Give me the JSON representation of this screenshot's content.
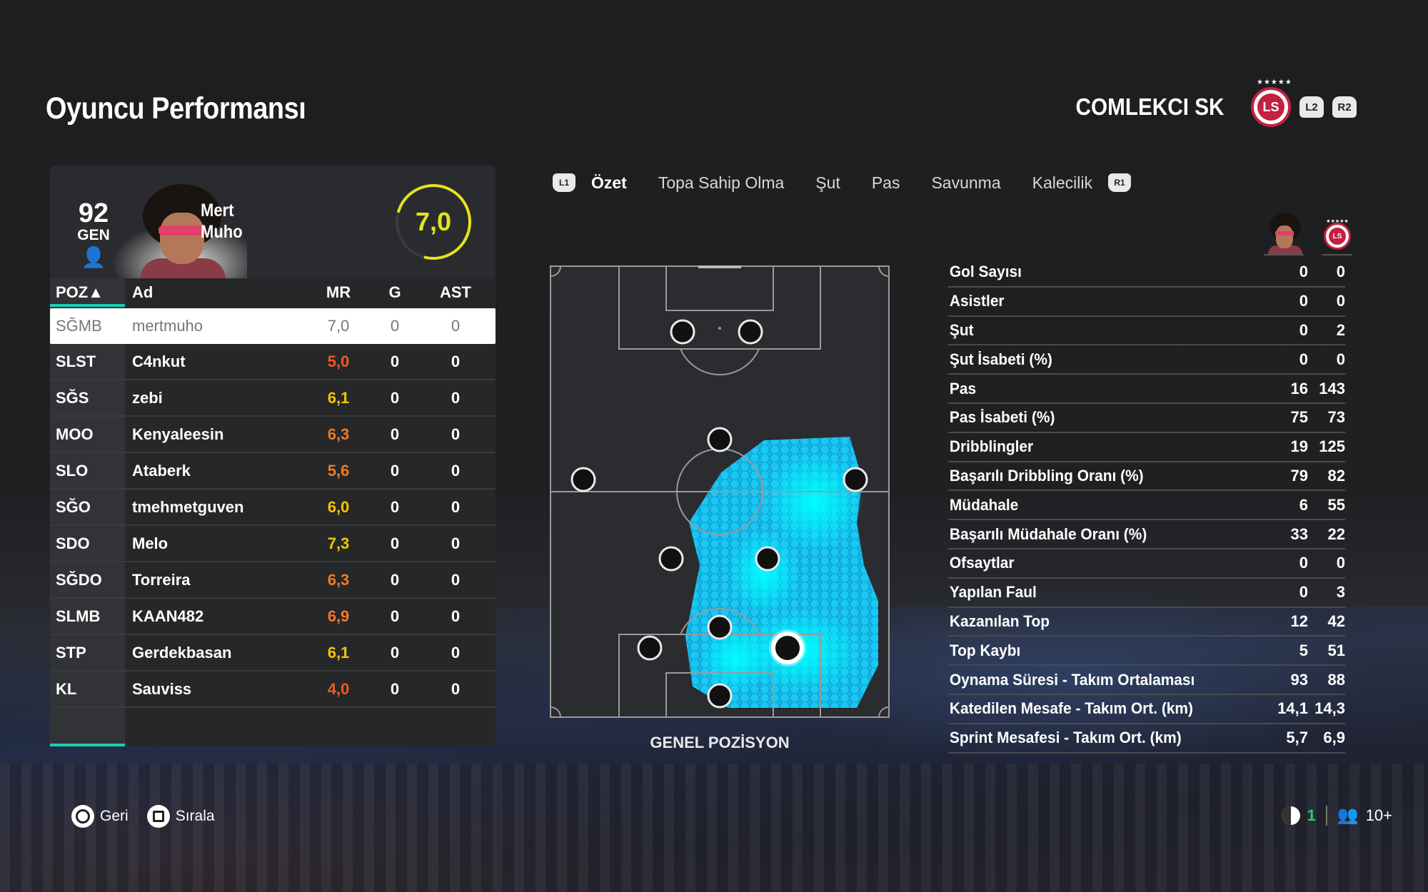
{
  "header": {
    "title": "Oyuncu Performansı",
    "club_name": "COMLEKCI SK",
    "club_crest_text": "LS",
    "l2_label": "L2",
    "r2_label": "R2"
  },
  "player": {
    "ovr": "92",
    "ovr_label": "GEN",
    "first_name": "Mert",
    "last_name": "Muho",
    "rating": "7,0"
  },
  "table": {
    "headers": {
      "pos": "POZ▲",
      "name": "Ad",
      "mr": "MR",
      "g": "G",
      "ast": "AST"
    },
    "rows": [
      {
        "pos": "SĞMB",
        "name": "mertmuho",
        "mr": "7,0",
        "g": "0",
        "ast": "0"
      },
      {
        "pos": "SLST",
        "name": "C4nkut",
        "mr": "5,0",
        "g": "0",
        "ast": "0"
      },
      {
        "pos": "SĞS",
        "name": "zebi",
        "mr": "6,1",
        "g": "0",
        "ast": "0"
      },
      {
        "pos": "MOO",
        "name": "Kenyaleesin",
        "mr": "6,3",
        "g": "0",
        "ast": "0"
      },
      {
        "pos": "SLO",
        "name": "Ataberk",
        "mr": "5,6",
        "g": "0",
        "ast": "0"
      },
      {
        "pos": "SĞO",
        "name": "tmehmetguven",
        "mr": "6,0",
        "g": "0",
        "ast": "0"
      },
      {
        "pos": "SDO",
        "name": "Melo",
        "mr": "7,3",
        "g": "0",
        "ast": "0"
      },
      {
        "pos": "SĞDO",
        "name": "Torreira",
        "mr": "6,3",
        "g": "0",
        "ast": "0"
      },
      {
        "pos": "SLMB",
        "name": "KAAN482",
        "mr": "6,9",
        "g": "0",
        "ast": "0"
      },
      {
        "pos": "STP",
        "name": "Gerdekbasan",
        "mr": "6,1",
        "g": "0",
        "ast": "0"
      },
      {
        "pos": "KL",
        "name": "Sauviss",
        "mr": "4,0",
        "g": "0",
        "ast": "0"
      }
    ]
  },
  "tabs": {
    "l1_label": "L1",
    "r1_label": "R1",
    "items": [
      "Özet",
      "Topa Sahip Olma",
      "Şut",
      "Pas",
      "Savunma",
      "Kalecilik"
    ],
    "active": "Özet"
  },
  "pitch": {
    "caption": "GENEL POZİSYON"
  },
  "stats": {
    "rows": [
      {
        "label": "Gol Sayısı",
        "player": "0",
        "team": "0"
      },
      {
        "label": "Asistler",
        "player": "0",
        "team": "0"
      },
      {
        "label": "Şut",
        "player": "0",
        "team": "2"
      },
      {
        "label": "Şut İsabeti (%)",
        "player": "0",
        "team": "0"
      },
      {
        "label": "Pas",
        "player": "16",
        "team": "143"
      },
      {
        "label": "Pas İsabeti (%)",
        "player": "75",
        "team": "73"
      },
      {
        "label": "Dribblingler",
        "player": "19",
        "team": "125"
      },
      {
        "label": "Başarılı Dribbling Oranı (%)",
        "player": "79",
        "team": "82"
      },
      {
        "label": "Müdahale",
        "player": "6",
        "team": "55"
      },
      {
        "label": "Başarılı Müdahale Oranı (%)",
        "player": "33",
        "team": "22"
      },
      {
        "label": "Ofsaytlar",
        "player": "0",
        "team": "0"
      },
      {
        "label": "Yapılan Faul",
        "player": "0",
        "team": "3"
      },
      {
        "label": "Kazanılan Top",
        "player": "12",
        "team": "42"
      },
      {
        "label": "Top Kaybı",
        "player": "5",
        "team": "51"
      },
      {
        "label": "Oynama Süresi - Takım Ortalaması",
        "player": "93",
        "team": "88"
      },
      {
        "label": "Katedilen Mesafe - Takım Ort. (km)",
        "player": "14,1",
        "team": "14,3"
      },
      {
        "label": "Sprint Mesafesi - Takım Ort. (km)",
        "player": "5,7",
        "team": "6,9"
      }
    ]
  },
  "footer": {
    "back_label": "Geri",
    "sort_label": "Sırala",
    "connection_count": "1",
    "players_count": "10+"
  },
  "colors": {
    "accent_teal": "#16d0b4",
    "rating_yellow": "#e4e321",
    "mr_orange": "#f07a22",
    "mr_yellow": "#f3c500",
    "heatmap_cyan": "#00e5ff",
    "club_red": "#c2213f"
  }
}
